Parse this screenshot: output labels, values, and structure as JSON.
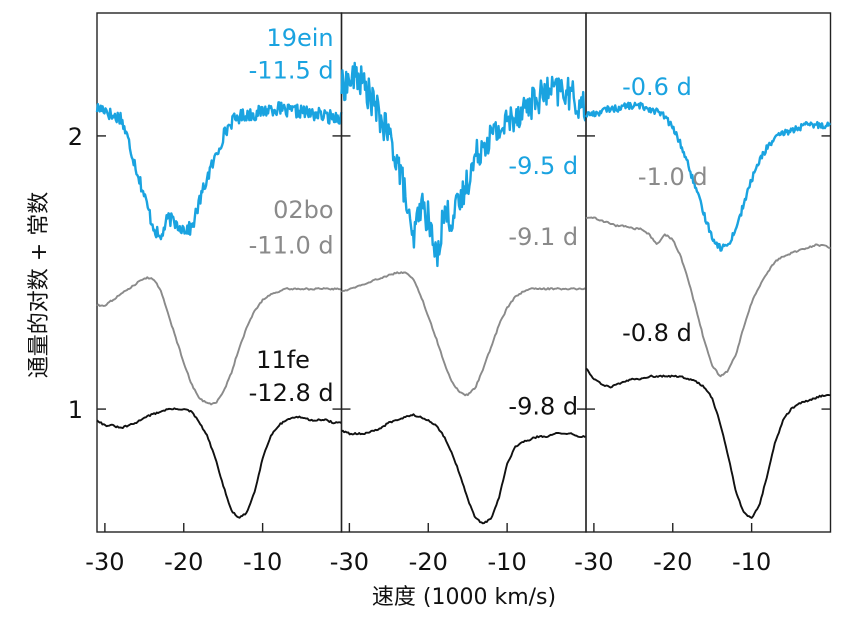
{
  "chart_data": {
    "type": "line",
    "ylabel": "通量的对数 + 常数",
    "xlabel": "速度 (1000 km/s)",
    "xlim": [
      -31,
      0
    ],
    "ylim": [
      0.55,
      2.45
    ],
    "x_ticks": [
      -30,
      -20,
      -10
    ],
    "y_ticks": [
      1,
      2
    ],
    "colors": {
      "19ein": "#1aa3e0",
      "02bo": "#8a8a8a",
      "11fe": "#111111"
    },
    "panels": [
      {
        "annotations": [
          {
            "text": "19ein",
            "x": -1,
            "y": 2.33,
            "color": "#1aa3e0",
            "anchor": "end"
          },
          {
            "text": "-11.5 d",
            "x": -1,
            "y": 2.21,
            "color": "#1aa3e0",
            "anchor": "end"
          },
          {
            "text": "02bo",
            "x": -1,
            "y": 1.7,
            "color": "#8a8a8a",
            "anchor": "end"
          },
          {
            "text": "-11.0 d",
            "x": -1,
            "y": 1.57,
            "color": "#8a8a8a",
            "anchor": "end"
          },
          {
            "text": "11fe",
            "x": -4,
            "y": 1.15,
            "color": "#111111",
            "anchor": "end"
          },
          {
            "text": "-12.8 d",
            "x": -1,
            "y": 1.03,
            "color": "#111111",
            "anchor": "end"
          }
        ],
        "series": [
          {
            "name": "19ein",
            "noisy": true,
            "noise": 0.025,
            "x": [
              -31,
              -30,
              -29,
              -28,
              -27,
              -26,
              -25,
              -24,
              -23,
              -22,
              -21,
              -20,
              -19,
              -18,
              -17,
              -16,
              -15,
              -14,
              -13,
              -12,
              -11,
              -10,
              -9,
              -8,
              -7,
              -6,
              -5,
              -4,
              -3,
              -2,
              -1,
              0
            ],
            "y": [
              2.1,
              2.1,
              2.07,
              2.07,
              1.98,
              1.88,
              1.78,
              1.68,
              1.62,
              1.7,
              1.68,
              1.66,
              1.66,
              1.76,
              1.85,
              1.92,
              2.0,
              2.05,
              2.07,
              2.08,
              2.08,
              2.09,
              2.1,
              2.1,
              2.09,
              2.09,
              2.09,
              2.08,
              2.08,
              2.07,
              2.07,
              2.07
            ]
          },
          {
            "name": "02bo",
            "x": [
              -31,
              -30,
              -29,
              -28,
              -27,
              -26,
              -25,
              -24,
              -23,
              -22,
              -21,
              -20,
              -19,
              -18,
              -17,
              -16,
              -15,
              -14,
              -13,
              -12,
              -11,
              -10,
              -9,
              -8,
              -7,
              -6,
              -5,
              -4,
              -3,
              -2,
              -1,
              0
            ],
            "y": [
              1.38,
              1.38,
              1.4,
              1.42,
              1.44,
              1.46,
              1.48,
              1.48,
              1.44,
              1.35,
              1.26,
              1.17,
              1.09,
              1.04,
              1.02,
              1.02,
              1.06,
              1.13,
              1.22,
              1.3,
              1.36,
              1.4,
              1.42,
              1.43,
              1.44,
              1.44,
              1.44,
              1.44,
              1.44,
              1.44,
              1.44,
              1.44
            ]
          },
          {
            "name": "11fe",
            "x": [
              -31,
              -30,
              -29,
              -28,
              -27,
              -26,
              -25,
              -24,
              -23,
              -22,
              -21,
              -20,
              -19,
              -18,
              -17,
              -16,
              -15,
              -14,
              -13,
              -12,
              -11,
              -10,
              -9,
              -8,
              -7,
              -6,
              -5,
              -4,
              -3,
              -2,
              -1,
              0
            ],
            "y": [
              0.96,
              0.94,
              0.94,
              0.93,
              0.94,
              0.95,
              0.97,
              0.98,
              0.99,
              1.0,
              1.0,
              1.0,
              0.99,
              0.95,
              0.9,
              0.82,
              0.72,
              0.63,
              0.6,
              0.62,
              0.7,
              0.82,
              0.9,
              0.94,
              0.96,
              0.97,
              0.97,
              0.96,
              0.96,
              0.96,
              0.95,
              0.95
            ]
          }
        ]
      },
      {
        "annotations": [
          {
            "text": "-9.5 d",
            "x": -1,
            "y": 1.86,
            "color": "#1aa3e0",
            "anchor": "end"
          },
          {
            "text": "-9.1 d",
            "x": -1,
            "y": 1.6,
            "color": "#8a8a8a",
            "anchor": "end"
          },
          {
            "text": "-9.8 d",
            "x": -1,
            "y": 0.98,
            "color": "#111111",
            "anchor": "end"
          }
        ],
        "series": [
          {
            "name": "19ein",
            "noisy": true,
            "noise": 0.06,
            "x": [
              -31,
              -30,
              -29,
              -28,
              -27,
              -26,
              -25,
              -24,
              -23,
              -22,
              -21,
              -20,
              -19,
              -18,
              -17,
              -16,
              -15,
              -14,
              -13,
              -12,
              -11,
              -10,
              -9,
              -8,
              -7,
              -6,
              -5,
              -4,
              -3,
              -2,
              -1,
              0
            ],
            "y": [
              2.18,
              2.2,
              2.22,
              2.18,
              2.12,
              2.06,
              2.0,
              1.92,
              1.8,
              1.6,
              1.75,
              1.7,
              1.55,
              1.72,
              1.7,
              1.75,
              1.84,
              1.92,
              1.98,
              2.0,
              2.02,
              2.05,
              2.08,
              2.1,
              2.12,
              2.14,
              2.16,
              2.16,
              2.17,
              2.15,
              2.12,
              2.1
            ]
          },
          {
            "name": "02bo",
            "x": [
              -31,
              -30,
              -29,
              -28,
              -27,
              -26,
              -25,
              -24,
              -23,
              -22,
              -21,
              -20,
              -19,
              -18,
              -17,
              -16,
              -15,
              -14,
              -13,
              -12,
              -11,
              -10,
              -9,
              -8,
              -7,
              -6,
              -5,
              -4,
              -3,
              -2,
              -1,
              0
            ],
            "y": [
              1.43,
              1.44,
              1.45,
              1.46,
              1.47,
              1.48,
              1.49,
              1.5,
              1.5,
              1.48,
              1.42,
              1.34,
              1.26,
              1.17,
              1.1,
              1.06,
              1.05,
              1.08,
              1.15,
              1.23,
              1.31,
              1.37,
              1.41,
              1.43,
              1.44,
              1.44,
              1.44,
              1.44,
              1.44,
              1.44,
              1.44,
              1.44
            ]
          },
          {
            "name": "11fe",
            "x": [
              -31,
              -30,
              -29,
              -28,
              -27,
              -26,
              -25,
              -24,
              -23,
              -22,
              -21,
              -20,
              -19,
              -18,
              -17,
              -16,
              -15,
              -14,
              -13,
              -12,
              -11,
              -10,
              -9,
              -8,
              -7,
              -6,
              -5,
              -4,
              -3,
              -2,
              -1,
              0
            ],
            "y": [
              0.92,
              0.91,
              0.91,
              0.91,
              0.92,
              0.93,
              0.95,
              0.96,
              0.97,
              0.98,
              0.97,
              0.96,
              0.94,
              0.9,
              0.84,
              0.76,
              0.67,
              0.6,
              0.58,
              0.6,
              0.68,
              0.8,
              0.86,
              0.88,
              0.89,
              0.9,
              0.9,
              0.91,
              0.91,
              0.91,
              0.9,
              0.9
            ]
          }
        ]
      },
      {
        "annotations": [
          {
            "text": "-0.6 d",
            "x": -22,
            "y": 2.15,
            "color": "#1aa3e0",
            "anchor": "middle"
          },
          {
            "text": "-1.0 d",
            "x": -20,
            "y": 1.82,
            "color": "#8a8a8a",
            "anchor": "middle"
          },
          {
            "text": "-0.8 d",
            "x": -22,
            "y": 1.25,
            "color": "#111111",
            "anchor": "middle"
          }
        ],
        "series": [
          {
            "name": "19ein",
            "noisy": true,
            "noise": 0.012,
            "x": [
              -31,
              -30,
              -29,
              -28,
              -27,
              -26,
              -25,
              -24,
              -23,
              -22,
              -21,
              -20,
              -19,
              -18,
              -17,
              -16,
              -15,
              -14,
              -13,
              -12,
              -11,
              -10,
              -9,
              -8,
              -7,
              -6,
              -5,
              -4,
              -3,
              -2,
              -1,
              0
            ],
            "y": [
              2.08,
              2.08,
              2.09,
              2.1,
              2.1,
              2.11,
              2.11,
              2.11,
              2.1,
              2.09,
              2.07,
              2.03,
              1.97,
              1.89,
              1.8,
              1.71,
              1.63,
              1.59,
              1.6,
              1.66,
              1.75,
              1.84,
              1.91,
              1.96,
              1.99,
              2.01,
              2.02,
              2.03,
              2.04,
              2.04,
              2.04,
              2.04
            ]
          },
          {
            "name": "02bo",
            "x": [
              -31,
              -30,
              -29,
              -28,
              -27,
              -26,
              -25,
              -24,
              -23,
              -22,
              -21,
              -20,
              -19,
              -18,
              -17,
              -16,
              -15,
              -14,
              -13,
              -12,
              -11,
              -10,
              -9,
              -8,
              -7,
              -6,
              -5,
              -4,
              -3,
              -2,
              -1,
              0
            ],
            "y": [
              1.7,
              1.7,
              1.69,
              1.68,
              1.67,
              1.67,
              1.66,
              1.66,
              1.64,
              1.6,
              1.64,
              1.62,
              1.56,
              1.47,
              1.36,
              1.25,
              1.16,
              1.12,
              1.14,
              1.2,
              1.3,
              1.39,
              1.45,
              1.5,
              1.54,
              1.56,
              1.57,
              1.58,
              1.59,
              1.6,
              1.6,
              1.59
            ]
          },
          {
            "name": "11fe",
            "x": [
              -31,
              -30,
              -29,
              -28,
              -27,
              -26,
              -25,
              -24,
              -23,
              -22,
              -21,
              -20,
              -19,
              -18,
              -17,
              -16,
              -15,
              -14,
              -13,
              -12,
              -11,
              -10,
              -9,
              -8,
              -7,
              -6,
              -5,
              -4,
              -3,
              -2,
              -1,
              0
            ],
            "y": [
              1.15,
              1.11,
              1.09,
              1.08,
              1.09,
              1.1,
              1.11,
              1.11,
              1.12,
              1.12,
              1.12,
              1.12,
              1.12,
              1.11,
              1.1,
              1.08,
              1.04,
              0.95,
              0.83,
              0.7,
              0.62,
              0.6,
              0.65,
              0.76,
              0.88,
              0.96,
              1.0,
              1.02,
              1.03,
              1.04,
              1.05,
              1.05
            ]
          }
        ]
      }
    ]
  }
}
